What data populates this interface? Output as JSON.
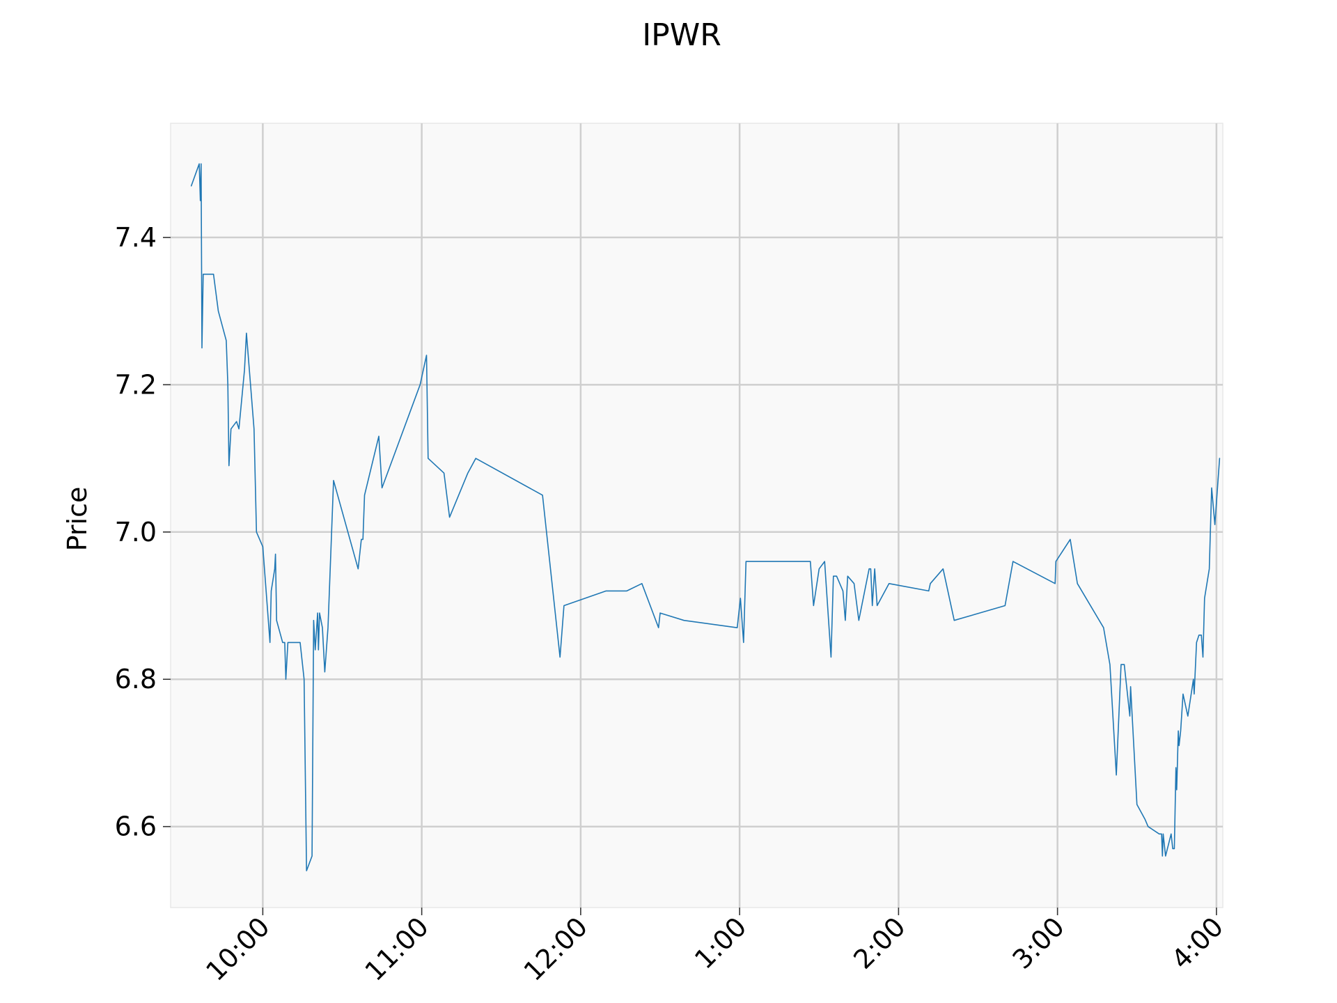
{
  "chart_data": {
    "type": "line",
    "title": "IPWR",
    "xlabel": "",
    "ylabel": "Price",
    "x_unit": "hours since midnight (9.5 = 9:30 AM, 16.0 = 4:00 PM)",
    "xlim": [
      9.42,
      16.04
    ],
    "ylim": [
      6.49,
      7.555
    ],
    "xticks": [
      {
        "value": 10,
        "label": "10:00"
      },
      {
        "value": 11,
        "label": "11:00"
      },
      {
        "value": 12,
        "label": "12:00"
      },
      {
        "value": 13,
        "label": "1:00"
      },
      {
        "value": 14,
        "label": "2:00"
      },
      {
        "value": 15,
        "label": "3:00"
      },
      {
        "value": 16,
        "label": "4:00"
      }
    ],
    "yticks": [
      {
        "value": 6.6,
        "label": "6.6"
      },
      {
        "value": 6.8,
        "label": "6.8"
      },
      {
        "value": 7.0,
        "label": "7.0"
      },
      {
        "value": 7.2,
        "label": "7.2"
      },
      {
        "value": 7.4,
        "label": "7.4"
      }
    ],
    "grid": true,
    "line_color": "#1f77b4",
    "series": [
      {
        "name": "IPWR",
        "points": [
          [
            9.55,
            7.47
          ],
          [
            9.6,
            7.5
          ],
          [
            9.607,
            7.45
          ],
          [
            9.612,
            7.5
          ],
          [
            9.617,
            7.25
          ],
          [
            9.625,
            7.35
          ],
          [
            9.69,
            7.35
          ],
          [
            9.72,
            7.3
          ],
          [
            9.77,
            7.26
          ],
          [
            9.78,
            7.2
          ],
          [
            9.787,
            7.09
          ],
          [
            9.8,
            7.14
          ],
          [
            9.835,
            7.15
          ],
          [
            9.85,
            7.14
          ],
          [
            9.885,
            7.22
          ],
          [
            9.897,
            7.27
          ],
          [
            9.945,
            7.14
          ],
          [
            9.96,
            7.0
          ],
          [
            10.0,
            6.98
          ],
          [
            10.045,
            6.85
          ],
          [
            10.053,
            6.92
          ],
          [
            10.075,
            6.95
          ],
          [
            10.08,
            6.97
          ],
          [
            10.087,
            6.88
          ],
          [
            10.125,
            6.85
          ],
          [
            10.138,
            6.85
          ],
          [
            10.145,
            6.8
          ],
          [
            10.158,
            6.85
          ],
          [
            10.235,
            6.85
          ],
          [
            10.26,
            6.8
          ],
          [
            10.275,
            6.54
          ],
          [
            10.31,
            6.56
          ],
          [
            10.32,
            6.88
          ],
          [
            10.33,
            6.84
          ],
          [
            10.345,
            6.89
          ],
          [
            10.35,
            6.84
          ],
          [
            10.357,
            6.89
          ],
          [
            10.375,
            6.87
          ],
          [
            10.39,
            6.81
          ],
          [
            10.41,
            6.87
          ],
          [
            10.445,
            7.07
          ],
          [
            10.6,
            6.95
          ],
          [
            10.62,
            6.99
          ],
          [
            10.63,
            6.99
          ],
          [
            10.64,
            7.05
          ],
          [
            10.73,
            7.13
          ],
          [
            10.75,
            7.06
          ],
          [
            10.99,
            7.2
          ],
          [
            11.03,
            7.24
          ],
          [
            11.04,
            7.1
          ],
          [
            11.14,
            7.08
          ],
          [
            11.175,
            7.02
          ],
          [
            11.29,
            7.08
          ],
          [
            11.34,
            7.1
          ],
          [
            11.76,
            7.05
          ],
          [
            11.87,
            6.83
          ],
          [
            11.895,
            6.9
          ],
          [
            12.16,
            6.92
          ],
          [
            12.29,
            6.92
          ],
          [
            12.385,
            6.93
          ],
          [
            12.49,
            6.87
          ],
          [
            12.5,
            6.89
          ],
          [
            12.65,
            6.88
          ],
          [
            12.985,
            6.87
          ],
          [
            13.005,
            6.91
          ],
          [
            13.025,
            6.85
          ],
          [
            13.04,
            6.96
          ],
          [
            13.445,
            6.96
          ],
          [
            13.465,
            6.9
          ],
          [
            13.5,
            6.95
          ],
          [
            13.535,
            6.96
          ],
          [
            13.575,
            6.83
          ],
          [
            13.59,
            6.94
          ],
          [
            13.61,
            6.94
          ],
          [
            13.65,
            6.92
          ],
          [
            13.665,
            6.88
          ],
          [
            13.68,
            6.94
          ],
          [
            13.72,
            6.93
          ],
          [
            13.75,
            6.88
          ],
          [
            13.815,
            6.95
          ],
          [
            13.825,
            6.95
          ],
          [
            13.835,
            6.9
          ],
          [
            13.85,
            6.95
          ],
          [
            13.865,
            6.9
          ],
          [
            13.94,
            6.93
          ],
          [
            14.19,
            6.92
          ],
          [
            14.2,
            6.93
          ],
          [
            14.28,
            6.95
          ],
          [
            14.35,
            6.88
          ],
          [
            14.67,
            6.9
          ],
          [
            14.72,
            6.96
          ],
          [
            14.985,
            6.93
          ],
          [
            14.99,
            6.96
          ],
          [
            15.08,
            6.99
          ],
          [
            15.125,
            6.93
          ],
          [
            15.29,
            6.87
          ],
          [
            15.33,
            6.82
          ],
          [
            15.37,
            6.67
          ],
          [
            15.4,
            6.82
          ],
          [
            15.42,
            6.82
          ],
          [
            15.455,
            6.75
          ],
          [
            15.46,
            6.79
          ],
          [
            15.5,
            6.63
          ],
          [
            15.55,
            6.61
          ],
          [
            15.57,
            6.6
          ],
          [
            15.64,
            6.59
          ],
          [
            15.655,
            6.59
          ],
          [
            15.66,
            6.56
          ],
          [
            15.665,
            6.59
          ],
          [
            15.68,
            6.56
          ],
          [
            15.715,
            6.59
          ],
          [
            15.725,
            6.57
          ],
          [
            15.735,
            6.57
          ],
          [
            15.745,
            6.68
          ],
          [
            15.75,
            6.65
          ],
          [
            15.76,
            6.73
          ],
          [
            15.765,
            6.71
          ],
          [
            15.775,
            6.73
          ],
          [
            15.79,
            6.78
          ],
          [
            15.82,
            6.75
          ],
          [
            15.855,
            6.8
          ],
          [
            15.86,
            6.78
          ],
          [
            15.875,
            6.85
          ],
          [
            15.89,
            6.86
          ],
          [
            15.905,
            6.86
          ],
          [
            15.915,
            6.83
          ],
          [
            15.925,
            6.91
          ],
          [
            15.955,
            6.95
          ],
          [
            15.97,
            7.06
          ],
          [
            15.99,
            7.01
          ],
          [
            16.02,
            7.1
          ]
        ]
      }
    ]
  }
}
